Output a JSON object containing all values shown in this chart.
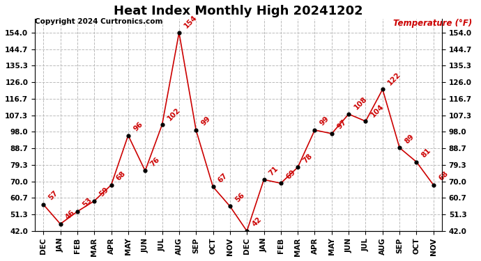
{
  "title": "Heat Index Monthly High 20241202",
  "copyright": "Copyright 2024 Curtronics.com",
  "temp_label": "Temperature (°F)",
  "months": [
    "DEC",
    "JAN",
    "FEB",
    "MAR",
    "APR",
    "MAY",
    "JUN",
    "JUL",
    "AUG",
    "SEP",
    "OCT",
    "NOV",
    "DEC",
    "JAN",
    "FEB",
    "MAR",
    "APR",
    "MAY",
    "JUN",
    "JUL",
    "AUG",
    "SEP",
    "OCT",
    "NOV"
  ],
  "values": [
    57,
    46,
    53,
    59,
    68,
    96,
    76,
    102,
    154,
    99,
    67,
    56,
    42,
    71,
    69,
    78,
    99,
    97,
    108,
    104,
    122,
    89,
    81,
    68
  ],
  "line_color": "#cc0000",
  "marker_color": "#000000",
  "background_color": "#ffffff",
  "grid_color": "#bbbbbb",
  "ylim_min": 42.0,
  "ylim_max": 162.0,
  "ydata_min": 42.0,
  "ydata_max": 154.0,
  "ytick_values": [
    42.0,
    51.3,
    60.7,
    70.0,
    79.3,
    88.7,
    98.0,
    107.3,
    116.7,
    126.0,
    135.3,
    144.7,
    154.0
  ],
  "title_fontsize": 13,
  "label_fontsize": 7.5,
  "annot_fontsize": 7.5,
  "copyright_fontsize": 7.5,
  "temp_label_fontsize": 8.5,
  "xtick_fontsize": 7.5
}
